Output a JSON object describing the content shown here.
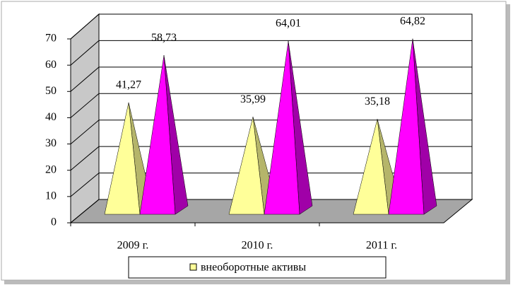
{
  "chart_data": {
    "type": "pyramid3d",
    "categories": [
      "2009 г.",
      "2010 г.",
      "2011 г."
    ],
    "series": [
      {
        "name": "внеоборотные активы",
        "color": "#ffff99",
        "values": [
          41.27,
          35.99,
          35.18
        ],
        "value_labels": [
          "41,27",
          "35,99",
          "35,18"
        ]
      },
      {
        "color": "#ff00ff",
        "values": [
          58.73,
          64.01,
          64.82
        ],
        "value_labels": [
          "58,73",
          "64,01",
          "64,82"
        ]
      }
    ],
    "ylim": [
      0,
      70
    ],
    "yticks": [
      0,
      10,
      20,
      30,
      40,
      50,
      60,
      70
    ],
    "grid": true,
    "legend": "bottom"
  }
}
